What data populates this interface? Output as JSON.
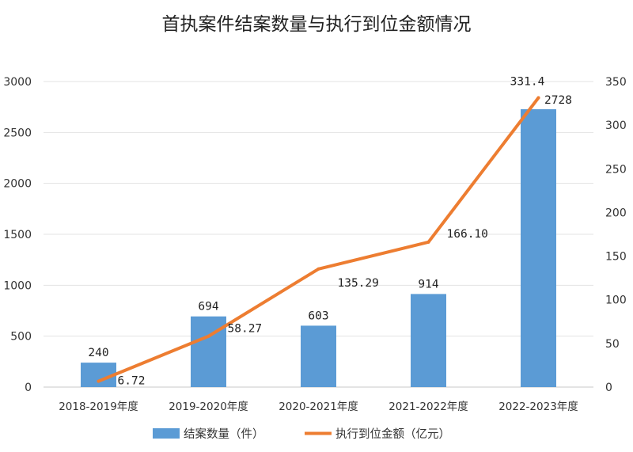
{
  "chart_data": {
    "type": "bar",
    "title": "首执案件结案数量与执行到位金额情况",
    "categories": [
      "2018-2019年度",
      "2019-2020年度",
      "2020-2021年度",
      "2021-2022年度",
      "2022-2023年度"
    ],
    "series": [
      {
        "name": "结案数量（件）",
        "type": "bar",
        "axis": "left",
        "color": "#5b9bd5",
        "values": [
          240,
          694,
          603,
          914,
          2728
        ],
        "labels": [
          "240",
          "694",
          "603",
          "914",
          "2728"
        ]
      },
      {
        "name": "执行到位金额（亿元）",
        "type": "line",
        "axis": "right",
        "color": "#ed7d31",
        "values": [
          6.72,
          58.27,
          135.29,
          166.1,
          331.4
        ],
        "labels": [
          "6.72",
          "58.27",
          "135.29",
          "166.10",
          "331.4"
        ]
      }
    ],
    "y_left": {
      "ylim": [
        0,
        3000
      ],
      "ticks": [
        0,
        500,
        1000,
        1500,
        2000,
        2500,
        3000
      ]
    },
    "y_right": {
      "ylim": [
        0,
        350
      ],
      "ticks": [
        0,
        50,
        100,
        150,
        200,
        250,
        300,
        350
      ]
    },
    "grid": true,
    "legend_position": "bottom"
  }
}
